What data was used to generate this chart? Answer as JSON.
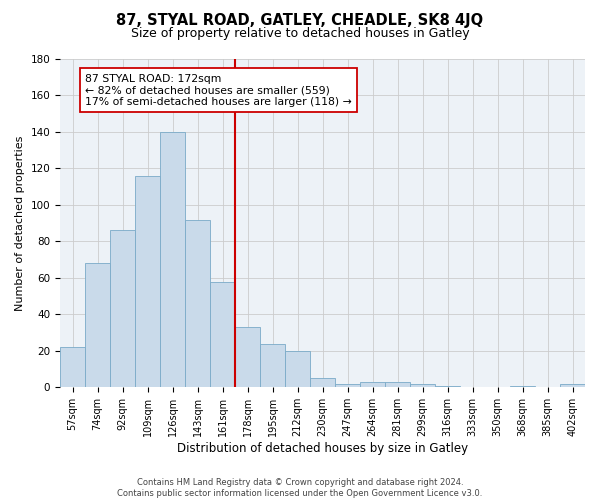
{
  "title": "87, STYAL ROAD, GATLEY, CHEADLE, SK8 4JQ",
  "subtitle": "Size of property relative to detached houses in Gatley",
  "xlabel": "Distribution of detached houses by size in Gatley",
  "ylabel": "Number of detached properties",
  "bar_labels": [
    "57sqm",
    "74sqm",
    "92sqm",
    "109sqm",
    "126sqm",
    "143sqm",
    "161sqm",
    "178sqm",
    "195sqm",
    "212sqm",
    "230sqm",
    "247sqm",
    "264sqm",
    "281sqm",
    "299sqm",
    "316sqm",
    "333sqm",
    "350sqm",
    "368sqm",
    "385sqm",
    "402sqm"
  ],
  "bar_values": [
    22,
    68,
    86,
    116,
    140,
    92,
    58,
    33,
    24,
    20,
    5,
    2,
    3,
    3,
    2,
    1,
    0,
    0,
    1,
    0,
    2
  ],
  "bar_color": "#c9daea",
  "bar_edge_color": "#7aaac8",
  "vline_color": "#cc0000",
  "annotation_text": "87 STYAL ROAD: 172sqm\n← 82% of detached houses are smaller (559)\n17% of semi-detached houses are larger (118) →",
  "annotation_box_color": "#ffffff",
  "annotation_box_edge_color": "#cc0000",
  "ylim": [
    0,
    180
  ],
  "yticks": [
    0,
    20,
    40,
    60,
    80,
    100,
    120,
    140,
    160,
    180
  ],
  "grid_color": "#cccccc",
  "bg_color": "#edf2f7",
  "footer_line1": "Contains HM Land Registry data © Crown copyright and database right 2024.",
  "footer_line2": "Contains public sector information licensed under the Open Government Licence v3.0."
}
